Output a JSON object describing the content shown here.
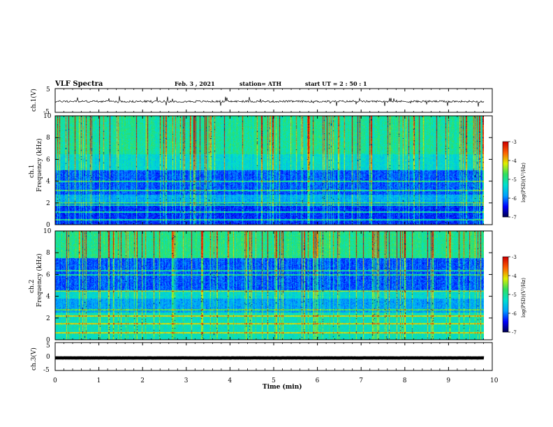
{
  "header": {
    "title": "VLF Spectra",
    "date": "Feb. 3 , 2021",
    "station": "station= ATH",
    "start": "start UT = 2 : 50 : 1"
  },
  "colors": {
    "colormap": [
      "#00004a",
      "#0000ff",
      "#00a0ff",
      "#00e0d0",
      "#30e060",
      "#e0f000",
      "#ff6000",
      "#d00000",
      "#ffffff"
    ]
  },
  "chart_data": [
    {
      "type": "line",
      "panel": "ch1-waveform",
      "ylabel": "ch.1(V)",
      "ylim": [
        -5,
        5
      ],
      "yticks": [
        "5",
        "-5"
      ],
      "xlim": [
        0,
        10
      ],
      "mean": -0.4,
      "noise_amplitude": 0.8
    },
    {
      "type": "heatmap",
      "panel": "ch1-spectrogram",
      "ylabel": "ch.1\nFrequency (kHz)",
      "ylabel_line1": "ch.1",
      "ylabel_line2": "Frequency (kHz)",
      "ylim": [
        0,
        10
      ],
      "yticks": [
        "0",
        "2",
        "4",
        "6",
        "8",
        "10"
      ],
      "xlim": [
        0,
        10
      ],
      "colorbar": {
        "label": "log(PSD)(V²/Hz)",
        "range": [
          -7,
          -3
        ],
        "ticks": [
          "-3",
          "-4",
          "-5",
          "-6",
          "-7"
        ]
      }
    },
    {
      "type": "heatmap",
      "panel": "ch2-spectrogram",
      "ylabel": "ch.2\nFrequency (kHz)",
      "ylabel_line1": "ch.2",
      "ylabel_line2": "Frequency (kHz)",
      "ylim": [
        0,
        10
      ],
      "yticks": [
        "0",
        "2",
        "4",
        "6",
        "8",
        "10"
      ],
      "xlim": [
        0,
        10
      ],
      "colorbar": {
        "label": "log(PSD)(V²/Hz)",
        "range": [
          -7,
          -3
        ],
        "ticks": [
          "-3",
          "-4",
          "-5",
          "-6",
          "-7"
        ]
      }
    },
    {
      "type": "line",
      "panel": "ch3-waveform",
      "ylabel": "ch.3(V)",
      "ylim": [
        -5,
        5
      ],
      "yticks": [
        "5",
        "0",
        "-5"
      ],
      "xlim": [
        0,
        10
      ],
      "mean": -0.5,
      "noise_amplitude": 0.05
    }
  ],
  "xaxis": {
    "label": "Time (min)",
    "ticks": [
      "0",
      "1",
      "2",
      "3",
      "4",
      "5",
      "6",
      "7",
      "8",
      "9",
      "10"
    ]
  }
}
